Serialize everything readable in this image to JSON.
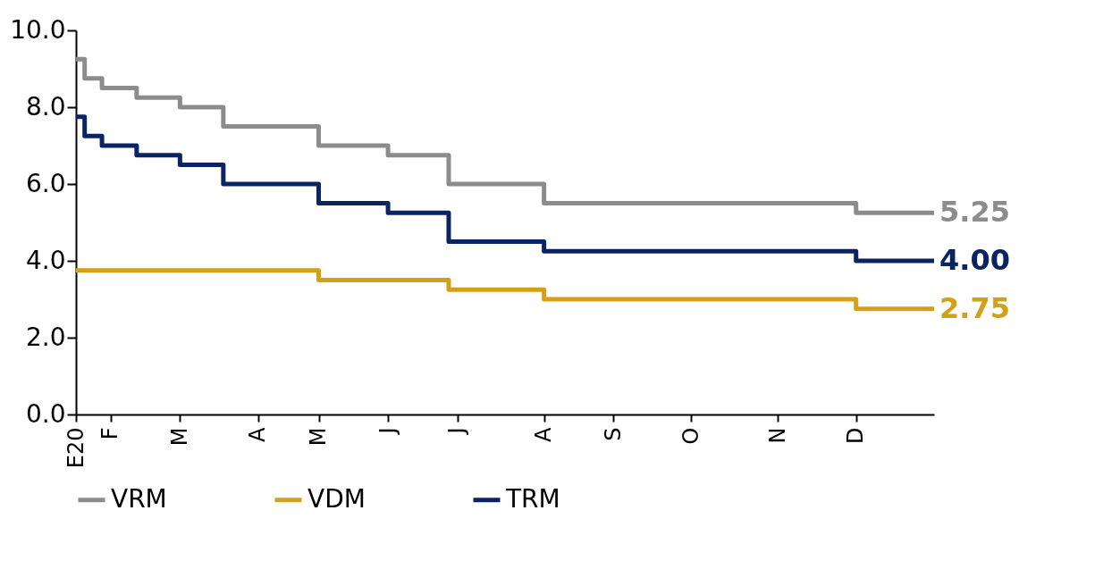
{
  "chart_data": {
    "type": "step",
    "categories": [
      "E20",
      null,
      null,
      null,
      "F",
      null,
      null,
      null,
      null,
      null,
      null,
      null,
      "M",
      null,
      null,
      null,
      null,
      null,
      null,
      null,
      null,
      "A",
      null,
      null,
      null,
      null,
      null,
      null,
      "M",
      null,
      null,
      null,
      null,
      null,
      null,
      null,
      "J",
      null,
      null,
      null,
      null,
      null,
      null,
      null,
      "J",
      null,
      null,
      null,
      null,
      null,
      null,
      null,
      null,
      null,
      "A",
      null,
      null,
      null,
      null,
      null,
      null,
      null,
      "S",
      null,
      null,
      null,
      null,
      null,
      null,
      null,
      null,
      "O",
      null,
      null,
      null,
      null,
      null,
      null,
      null,
      null,
      null,
      "N",
      null,
      null,
      null,
      null,
      null,
      null,
      null,
      null,
      "D",
      null,
      null,
      null,
      null,
      null,
      null,
      null,
      null,
      null
    ],
    "series": [
      {
        "name": "VRM",
        "color": "#8c8c8c",
        "values": [
          9.25,
          8.75,
          8.75,
          8.5,
          8.5,
          8.5,
          8.5,
          8.25,
          8.25,
          8.25,
          8.25,
          8.25,
          8.0,
          8.0,
          8.0,
          8.0,
          8.0,
          7.5,
          7.5,
          7.5,
          7.5,
          7.5,
          7.5,
          7.5,
          7.5,
          7.5,
          7.5,
          7.5,
          7.0,
          7.0,
          7.0,
          7.0,
          7.0,
          7.0,
          7.0,
          7.0,
          6.75,
          6.75,
          6.75,
          6.75,
          6.75,
          6.75,
          6.75,
          6.0,
          6.0,
          6.0,
          6.0,
          6.0,
          6.0,
          6.0,
          6.0,
          6.0,
          6.0,
          6.0,
          5.5,
          5.5,
          5.5,
          5.5,
          5.5,
          5.5,
          5.5,
          5.5,
          5.5,
          5.5,
          5.5,
          5.5,
          5.5,
          5.5,
          5.5,
          5.5,
          5.5,
          5.5,
          5.5,
          5.5,
          5.5,
          5.5,
          5.5,
          5.5,
          5.5,
          5.5,
          5.5,
          5.5,
          5.5,
          5.5,
          5.5,
          5.5,
          5.5,
          5.5,
          5.5,
          5.5,
          5.25,
          5.25,
          5.25,
          5.25,
          5.25,
          5.25,
          5.25,
          5.25,
          5.25,
          5.25
        ],
        "value_labels": [
          null,
          null,
          null,
          null,
          null,
          null,
          null,
          null,
          null,
          null,
          null,
          null,
          null,
          null,
          null,
          null,
          null,
          null,
          null,
          null,
          null,
          null,
          null,
          null,
          null,
          null,
          null,
          null,
          null,
          null,
          null,
          null,
          null,
          null,
          null,
          null,
          null,
          null,
          null,
          null,
          null,
          null,
          null,
          null,
          null,
          null,
          null,
          null,
          null,
          null,
          null,
          null,
          null,
          null,
          null,
          null,
          null,
          null,
          null,
          null,
          null,
          null,
          null,
          null,
          null,
          null,
          null,
          null,
          null,
          null,
          null,
          null,
          null,
          null,
          null,
          null,
          null,
          null,
          null,
          null,
          null,
          null,
          null,
          null,
          null,
          null,
          null,
          null,
          null,
          null,
          null,
          null,
          null,
          null,
          null,
          null,
          null,
          null,
          null,
          "5.25"
        ]
      },
      {
        "name": "VDM",
        "color": "#d4a017",
        "values": [
          3.75,
          3.75,
          3.75,
          3.75,
          3.75,
          3.75,
          3.75,
          3.75,
          3.75,
          3.75,
          3.75,
          3.75,
          3.75,
          3.75,
          3.75,
          3.75,
          3.75,
          3.75,
          3.75,
          3.75,
          3.75,
          3.75,
          3.75,
          3.75,
          3.75,
          3.75,
          3.75,
          3.75,
          3.5,
          3.5,
          3.5,
          3.5,
          3.5,
          3.5,
          3.5,
          3.5,
          3.5,
          3.5,
          3.5,
          3.5,
          3.5,
          3.5,
          3.5,
          3.25,
          3.25,
          3.25,
          3.25,
          3.25,
          3.25,
          3.25,
          3.25,
          3.25,
          3.25,
          3.25,
          3.0,
          3.0,
          3.0,
          3.0,
          3.0,
          3.0,
          3.0,
          3.0,
          3.0,
          3.0,
          3.0,
          3.0,
          3.0,
          3.0,
          3.0,
          3.0,
          3.0,
          3.0,
          3.0,
          3.0,
          3.0,
          3.0,
          3.0,
          3.0,
          3.0,
          3.0,
          3.0,
          3.0,
          3.0,
          3.0,
          3.0,
          3.0,
          3.0,
          3.0,
          3.0,
          3.0,
          2.75,
          2.75,
          2.75,
          2.75,
          2.75,
          2.75,
          2.75,
          2.75,
          2.75,
          2.75
        ],
        "value_labels": [
          null,
          null,
          null,
          null,
          null,
          null,
          null,
          null,
          null,
          null,
          null,
          null,
          null,
          null,
          null,
          null,
          null,
          null,
          null,
          null,
          null,
          null,
          null,
          null,
          null,
          null,
          null,
          null,
          null,
          null,
          null,
          null,
          null,
          null,
          null,
          null,
          null,
          null,
          null,
          null,
          null,
          null,
          null,
          null,
          null,
          null,
          null,
          null,
          null,
          null,
          null,
          null,
          null,
          null,
          null,
          null,
          null,
          null,
          null,
          null,
          null,
          null,
          null,
          null,
          null,
          null,
          null,
          null,
          null,
          null,
          null,
          null,
          null,
          null,
          null,
          null,
          null,
          null,
          null,
          null,
          null,
          null,
          null,
          null,
          null,
          null,
          null,
          null,
          null,
          null,
          null,
          null,
          null,
          null,
          null,
          null,
          null,
          null,
          null,
          "2.75"
        ]
      },
      {
        "name": "TRM",
        "color": "#0a2463",
        "values": [
          7.75,
          7.25,
          7.25,
          7.0,
          7.0,
          7.0,
          7.0,
          6.75,
          6.75,
          6.75,
          6.75,
          6.75,
          6.5,
          6.5,
          6.5,
          6.5,
          6.5,
          6.0,
          6.0,
          6.0,
          6.0,
          6.0,
          6.0,
          6.0,
          6.0,
          6.0,
          6.0,
          6.0,
          5.5,
          5.5,
          5.5,
          5.5,
          5.5,
          5.5,
          5.5,
          5.5,
          5.25,
          5.25,
          5.25,
          5.25,
          5.25,
          5.25,
          5.25,
          4.5,
          4.5,
          4.5,
          4.5,
          4.5,
          4.5,
          4.5,
          4.5,
          4.5,
          4.5,
          4.5,
          4.25,
          4.25,
          4.25,
          4.25,
          4.25,
          4.25,
          4.25,
          4.25,
          4.25,
          4.25,
          4.25,
          4.25,
          4.25,
          4.25,
          4.25,
          4.25,
          4.25,
          4.25,
          4.25,
          4.25,
          4.25,
          4.25,
          4.25,
          4.25,
          4.25,
          4.25,
          4.25,
          4.25,
          4.25,
          4.25,
          4.25,
          4.25,
          4.25,
          4.25,
          4.25,
          4.25,
          4.0,
          4.0,
          4.0,
          4.0,
          4.0,
          4.0,
          4.0,
          4.0,
          4.0,
          4.0
        ],
        "value_labels": [
          null,
          null,
          null,
          null,
          null,
          null,
          null,
          null,
          null,
          null,
          null,
          null,
          null,
          null,
          null,
          null,
          null,
          null,
          null,
          null,
          null,
          null,
          null,
          null,
          null,
          null,
          null,
          null,
          null,
          null,
          null,
          null,
          null,
          null,
          null,
          null,
          null,
          null,
          null,
          null,
          null,
          null,
          null,
          null,
          null,
          null,
          null,
          null,
          null,
          null,
          null,
          null,
          null,
          null,
          null,
          null,
          null,
          null,
          null,
          null,
          null,
          null,
          null,
          null,
          null,
          null,
          null,
          null,
          null,
          null,
          null,
          null,
          null,
          null,
          null,
          null,
          null,
          null,
          null,
          null,
          null,
          null,
          null,
          null,
          null,
          null,
          null,
          null,
          null,
          null,
          null,
          null,
          null,
          null,
          null,
          null,
          null,
          null,
          null,
          "4.00"
        ]
      }
    ],
    "ylim": [
      0,
      10
    ],
    "yticks": [
      {
        "value": 0,
        "label": "0.0"
      },
      {
        "value": 2,
        "label": "2.0"
      },
      {
        "value": 4,
        "label": "4.0"
      },
      {
        "value": 6,
        "label": "6.0"
      },
      {
        "value": 8,
        "label": "8.0"
      },
      {
        "value": 10,
        "label": "10.0"
      }
    ],
    "grid": false,
    "legend": "bottom",
    "line_style": "solid"
  }
}
